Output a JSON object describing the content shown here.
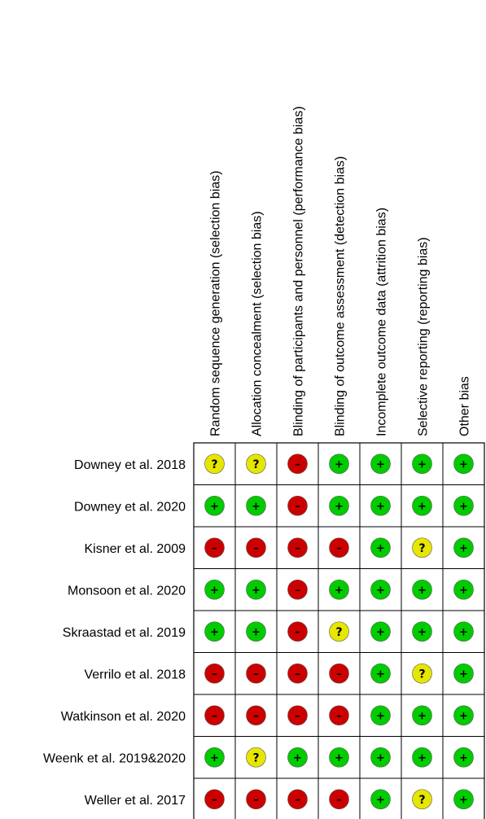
{
  "chart_data": {
    "type": "table",
    "domains": [
      "Random sequence generation (selection bias)",
      "Allocation concealment (selection bias)",
      "Blinding of participants and personnel (performance bias)",
      "Blinding of outcome assessment (detection bias)",
      "Incomplete outcome data (attrition bias)",
      "Selective reporting (reporting bias)",
      "Other bias"
    ],
    "studies": [
      {
        "name": "Downey et al. 2018",
        "ratings": [
          "?",
          "?",
          "-",
          "+",
          "+",
          "+",
          "+"
        ]
      },
      {
        "name": "Downey et al. 2020",
        "ratings": [
          "+",
          "+",
          "-",
          "+",
          "+",
          "+",
          "+"
        ]
      },
      {
        "name": "Kisner et al. 2009",
        "ratings": [
          "-",
          "-",
          "-",
          "-",
          "+",
          "?",
          "+"
        ]
      },
      {
        "name": "Monsoon et al. 2020",
        "ratings": [
          "+",
          "+",
          "-",
          "+",
          "+",
          "+",
          "+"
        ]
      },
      {
        "name": "Skraastad et al. 2019",
        "ratings": [
          "+",
          "+",
          "-",
          "?",
          "+",
          "+",
          "+"
        ]
      },
      {
        "name": "Verrilo et al. 2018",
        "ratings": [
          "-",
          "-",
          "-",
          "-",
          "+",
          "?",
          "+"
        ]
      },
      {
        "name": "Watkinson et al. 2020",
        "ratings": [
          "-",
          "-",
          "-",
          "-",
          "+",
          "+",
          "+"
        ]
      },
      {
        "name": "Weenk et al. 2019&2020",
        "ratings": [
          "+",
          "?",
          "+",
          "+",
          "+",
          "+",
          "+"
        ]
      },
      {
        "name": "Weller et al. 2017",
        "ratings": [
          "-",
          "-",
          "-",
          "-",
          "+",
          "?",
          "+"
        ]
      }
    ],
    "rating_styles": {
      "+": {
        "color": "#00cc00",
        "symbol": "+"
      },
      "-": {
        "color": "#cc0000",
        "symbol": "–"
      },
      "?": {
        "color": "#e6e600",
        "symbol": "?"
      }
    }
  }
}
